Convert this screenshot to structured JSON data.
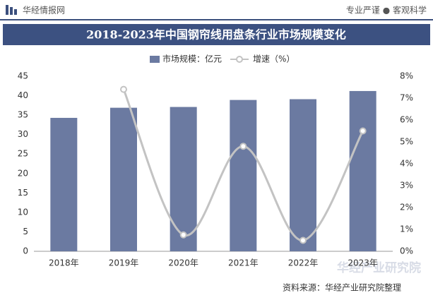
{
  "header": {
    "brand": "华经情报网",
    "slogan": "专业严谨 ● 客观科学"
  },
  "chart_data": {
    "type": "bar-line",
    "title": "2018-2023年中国钢帘线用盘条行业市场规模变化",
    "categories": [
      "2018年",
      "2019年",
      "2020年",
      "2021年",
      "2022年",
      "2023年"
    ],
    "series": [
      {
        "name": "市场规模：亿元",
        "type": "bar",
        "color": "#6b7aa1",
        "values": [
          34.3,
          36.9,
          37.1,
          38.9,
          39.1,
          41.2
        ]
      },
      {
        "name": "增速（%）",
        "type": "line",
        "axis": "y2",
        "color": "#c3c3c3",
        "values": [
          null,
          7.4,
          0.75,
          4.8,
          0.5,
          5.5
        ]
      }
    ],
    "ylim": [
      0,
      45
    ],
    "yticks": [
      0,
      5,
      10,
      15,
      20,
      25,
      30,
      35,
      40,
      45
    ],
    "y2lim": [
      0,
      8
    ],
    "y2ticks": [
      {
        "value": 0,
        "label": "0%"
      },
      {
        "value": 1,
        "label": "1%"
      },
      {
        "value": 2,
        "label": "2%"
      },
      {
        "value": 3,
        "label": "3%"
      },
      {
        "value": 4,
        "label": "4%"
      },
      {
        "value": 5,
        "label": "5%"
      },
      {
        "value": 6,
        "label": "6%"
      },
      {
        "value": 7,
        "label": "7%"
      },
      {
        "value": 8,
        "label": "8%"
      }
    ],
    "grid": false,
    "legend": "top",
    "watermark": "华经产业研究院",
    "source": "资料来源：华经产业研究院整理"
  }
}
